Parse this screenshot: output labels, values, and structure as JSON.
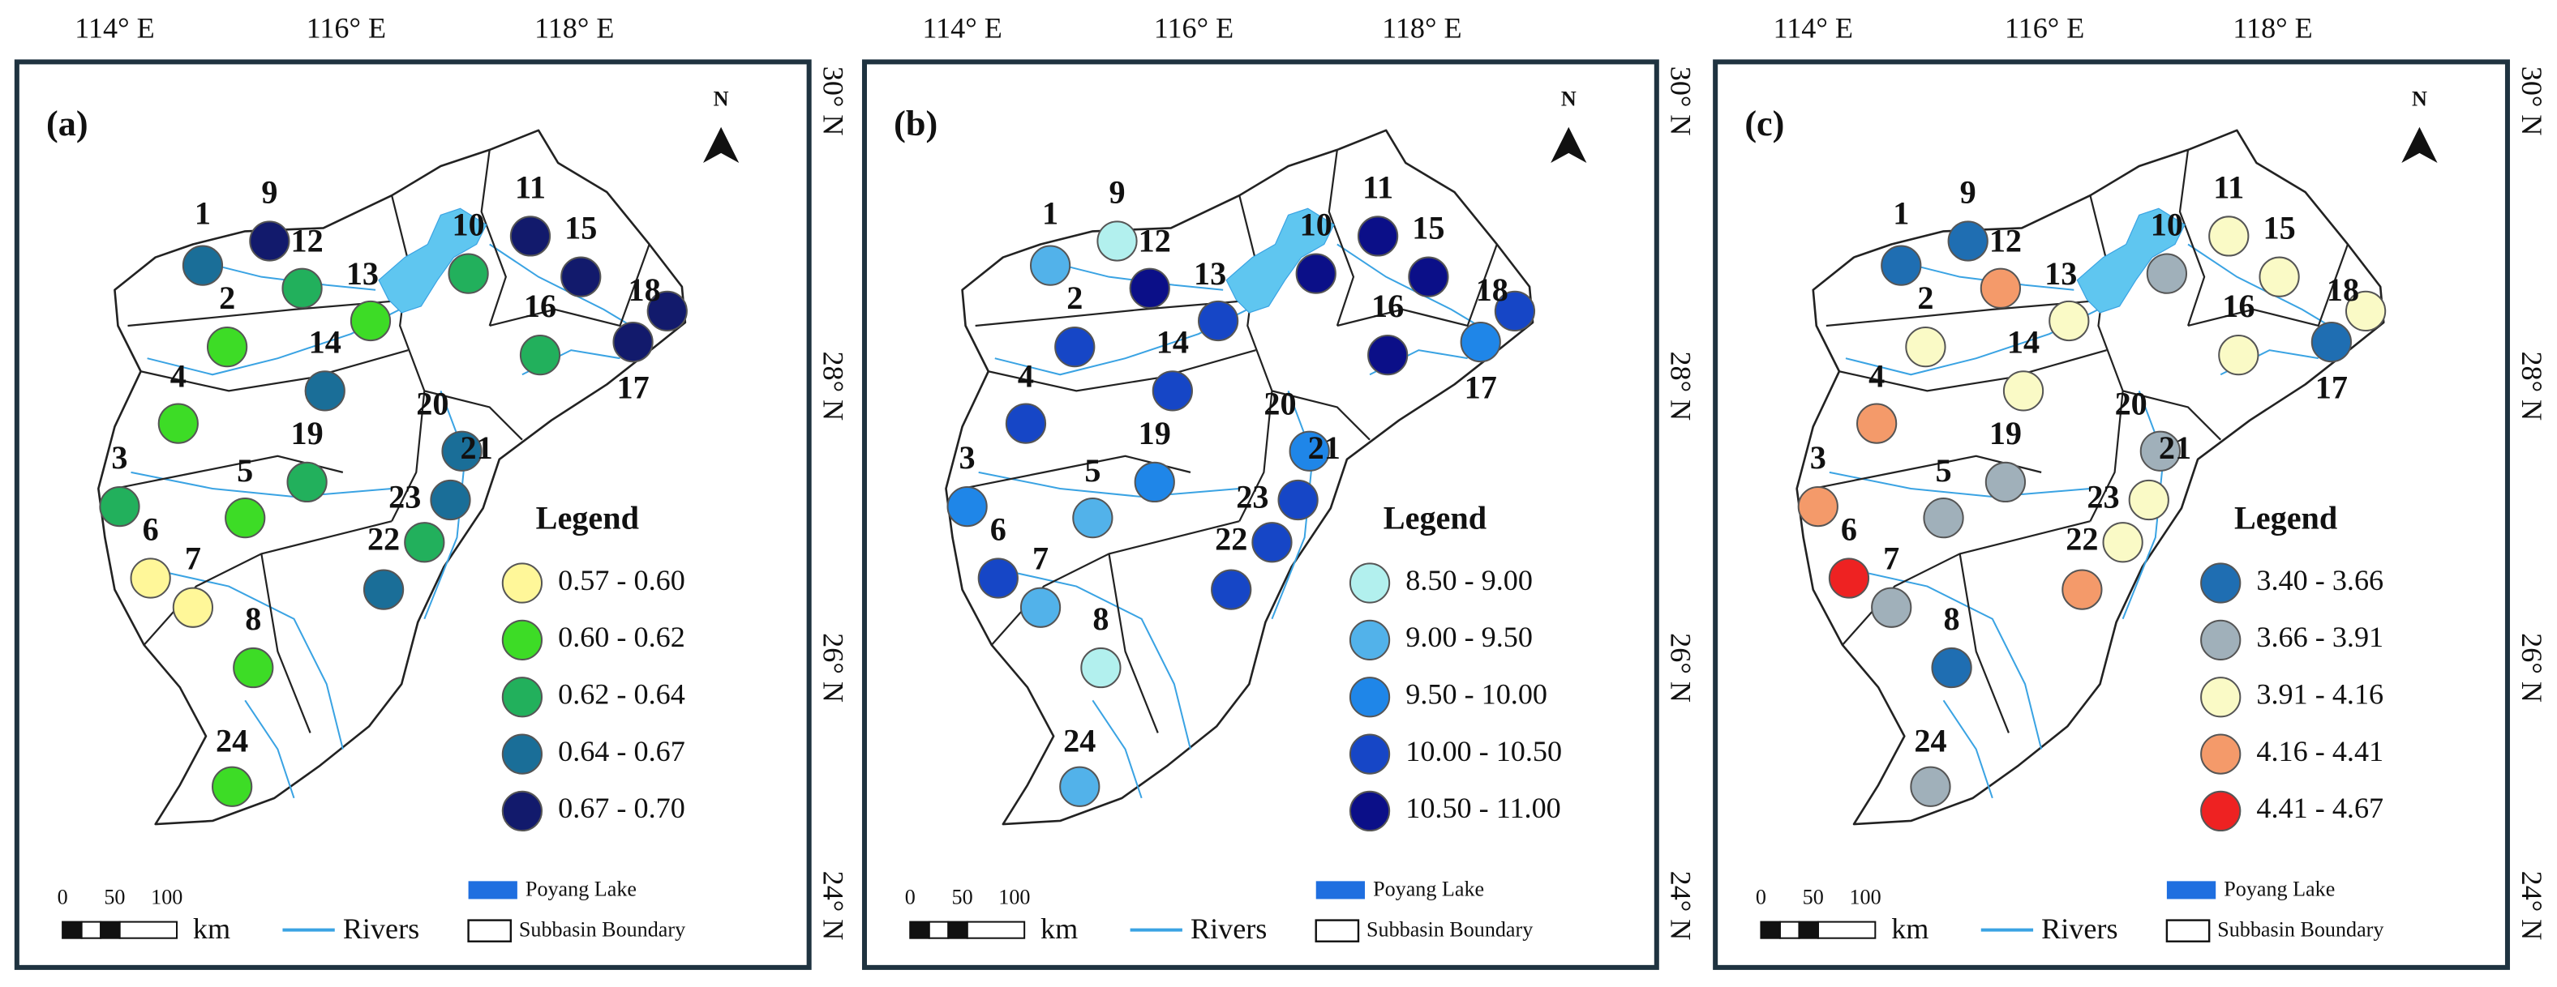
{
  "graticule": {
    "lon": [
      "114° E",
      "116° E",
      "118° E"
    ],
    "lat": [
      "30° N",
      "28° N",
      "26° N",
      "24° N"
    ]
  },
  "stations": [
    "1",
    "2",
    "3",
    "4",
    "5",
    "6",
    "7",
    "8",
    "9",
    "10",
    "11",
    "12",
    "13",
    "14",
    "15",
    "16",
    "17",
    "18",
    "19",
    "20",
    "21",
    "22",
    "23",
    "24"
  ],
  "map_labels": {
    "north": "N",
    "legend_title": "Legend",
    "lake": "Poyang Lake",
    "rivers": "Rivers",
    "boundary": "Subbasin Boundary",
    "scale_unit": "km",
    "scale_ticks": [
      "0",
      "50",
      "100"
    ]
  },
  "panels": [
    {
      "label": "(a)",
      "legend": [
        {
          "label": "0.57 - 0.60",
          "color": "#fff799"
        },
        {
          "label": "0.60 - 0.62",
          "color": "#3ddc26"
        },
        {
          "label": "0.62 - 0.64",
          "color": "#22b05c"
        },
        {
          "label": "0.64 - 0.67",
          "color": "#1a6e98"
        },
        {
          "label": "0.67 - 0.70",
          "color": "#121a6c"
        }
      ],
      "station_classes": [
        3,
        1,
        2,
        1,
        1,
        0,
        0,
        1,
        4,
        2,
        4,
        2,
        1,
        3,
        4,
        2,
        4,
        4,
        2,
        3,
        3,
        3,
        2,
        1
      ]
    },
    {
      "label": "(b)",
      "legend": [
        {
          "label": "8.50 - 9.00",
          "color": "#b2f0ee"
        },
        {
          "label": "9.00 - 9.50",
          "color": "#52b2ea"
        },
        {
          "label": "9.50 - 10.00",
          "color": "#1f86e8"
        },
        {
          "label": "10.00 - 10.50",
          "color": "#1646c6"
        },
        {
          "label": "10.50 - 11.00",
          "color": "#0b0f88"
        }
      ],
      "station_classes": [
        1,
        3,
        2,
        3,
        1,
        3,
        1,
        0,
        0,
        4,
        4,
        4,
        3,
        3,
        4,
        4,
        2,
        3,
        2,
        2,
        3,
        3,
        3,
        1
      ]
    },
    {
      "label": "(c)",
      "legend": [
        {
          "label": "3.40 - 3.66",
          "color": "#1f6eb2"
        },
        {
          "label": "3.66 - 3.91",
          "color": "#a0b0ba"
        },
        {
          "label": "3.91 - 4.16",
          "color": "#fafac6"
        },
        {
          "label": "4.16 - 4.41",
          "color": "#f49a6a"
        },
        {
          "label": "4.41 - 4.67",
          "color": "#ee2222"
        }
      ],
      "station_classes": [
        0,
        2,
        3,
        3,
        1,
        4,
        1,
        0,
        0,
        1,
        2,
        3,
        2,
        2,
        2,
        2,
        0,
        2,
        1,
        1,
        2,
        3,
        2,
        1
      ]
    }
  ]
}
